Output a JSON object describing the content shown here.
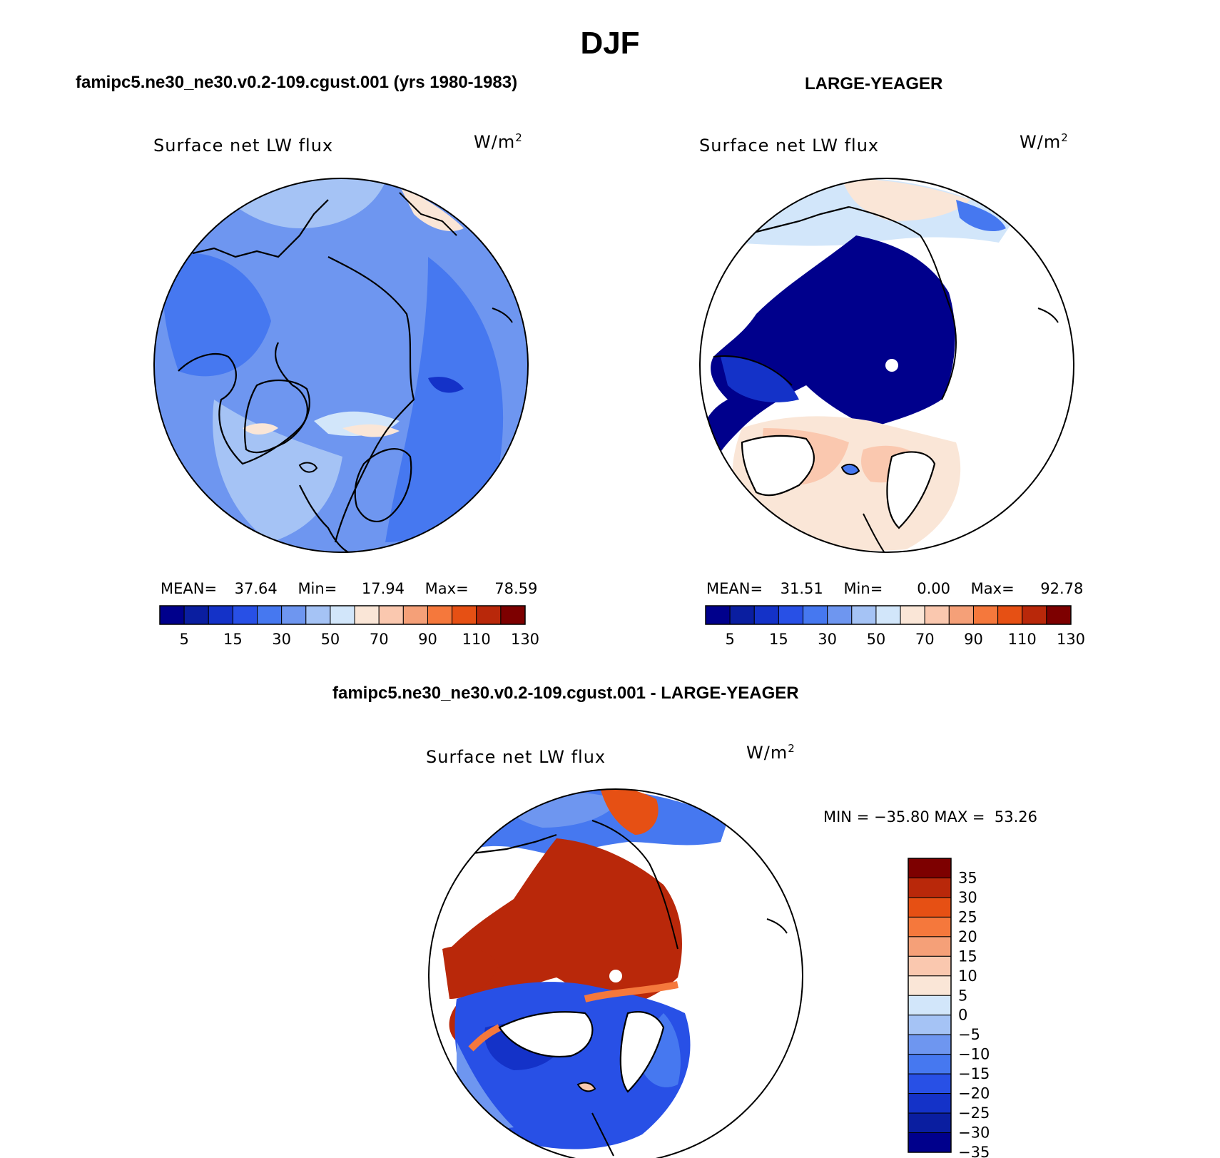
{
  "figure": {
    "season": "DJF",
    "units_main": "W/m",
    "units_sup": "2"
  },
  "panels": {
    "model": {
      "title": "famipc5.ne30_ne30.v0.2-109.cgust.001 (yrs 1980-1983)",
      "variable": "Surface net LW flux",
      "mean_label": "MEAN=",
      "mean": "37.64",
      "min_label": "Min=",
      "min": "17.94",
      "max_label": "Max=",
      "max": "78.59"
    },
    "obs": {
      "title": "LARGE-YEAGER",
      "variable": "Surface net LW flux",
      "mean_label": "MEAN=",
      "mean": "31.51",
      "min_label": "Min=",
      "min": "0.00",
      "max_label": "Max=",
      "max": "92.78"
    },
    "diff": {
      "title": "famipc5.ne30_ne30.v0.2-109.cgust.001 - LARGE-YEAGER",
      "variable": "Surface net LW flux",
      "minmax_text": "MIN = −35.80 MAX =  53.26"
    }
  },
  "chart_data": [
    {
      "type": "heatmap",
      "projection": "north-polar-stereographic",
      "title": "famipc5.ne30_ne30.v0.2-109.cgust.001 (yrs 1980-1983)",
      "variable": "Surface net LW flux",
      "units": "W/m^2",
      "stats": {
        "mean": 37.64,
        "min": 17.94,
        "max": 78.59
      },
      "colorbar_levels": [
        5,
        10,
        15,
        20,
        30,
        40,
        50,
        60,
        70,
        80,
        90,
        100,
        110,
        120,
        130
      ],
      "colorbar_tick_labels": [
        "5",
        "15",
        "30",
        "50",
        "70",
        "90",
        "110",
        "130"
      ]
    },
    {
      "type": "heatmap",
      "projection": "north-polar-stereographic",
      "title": "LARGE-YEAGER",
      "variable": "Surface net LW flux",
      "units": "W/m^2",
      "stats": {
        "mean": 31.51,
        "min": 0.0,
        "max": 92.78
      },
      "colorbar_levels": [
        5,
        10,
        15,
        20,
        30,
        40,
        50,
        60,
        70,
        80,
        90,
        100,
        110,
        120,
        130
      ],
      "colorbar_tick_labels": [
        "5",
        "15",
        "30",
        "50",
        "70",
        "90",
        "110",
        "130"
      ]
    },
    {
      "type": "heatmap",
      "projection": "north-polar-stereographic",
      "title": "famipc5.ne30_ne30.v0.2-109.cgust.001 - LARGE-YEAGER",
      "variable": "Surface net LW flux",
      "units": "W/m^2",
      "stats": {
        "min": -35.8,
        "max": 53.26
      },
      "colorbar_levels": [
        -35,
        -30,
        -25,
        -20,
        -15,
        -10,
        -5,
        0,
        5,
        10,
        15,
        20,
        25,
        30,
        35
      ],
      "colorbar_tick_labels": [
        "35",
        "30",
        "25",
        "20",
        "15",
        "10",
        "5",
        "0",
        "−5",
        "−10",
        "−15",
        "−20",
        "−25",
        "−30",
        "−35"
      ]
    }
  ],
  "colors": {
    "palette": [
      "#00008c",
      "#0a1ea0",
      "#1432c8",
      "#2850e6",
      "#4678f0",
      "#6e96f0",
      "#a5c3f5",
      "#d2e6fa",
      "#fae6d7",
      "#fac8af",
      "#f5a078",
      "#f5783c",
      "#e65014",
      "#b9280a",
      "#7d0000"
    ]
  }
}
